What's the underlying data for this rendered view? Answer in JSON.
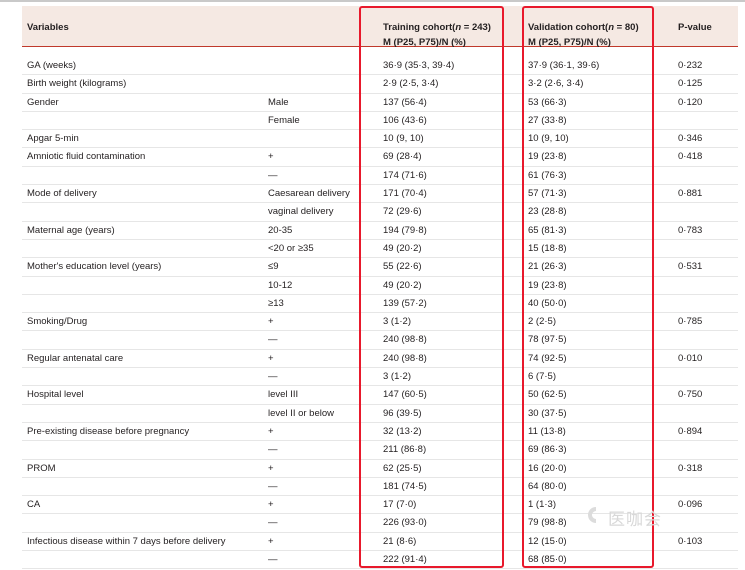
{
  "header": {
    "variables": "Variables",
    "training_line1_prefix": "Training cohort(",
    "training_line1_n": "n",
    "training_line1_suffix": " = 243)",
    "training_line2": "M (P25, P75)/N (%)",
    "validation_line1_prefix": "Validation cohort(",
    "validation_line1_n": "n",
    "validation_line1_suffix": " = 80)",
    "validation_line2": "M (P25, P75)/N (%)",
    "pvalue": "P-value"
  },
  "rows": [
    {
      "variable": "GA (weeks)",
      "category": "",
      "training": "36·9 (35·3, 39·4)",
      "validation": "37·9 (36·1, 39·6)",
      "p": "0·232"
    },
    {
      "variable": "Birth weight (kilograms)",
      "category": "",
      "training": "2·9 (2·5, 3·4)",
      "validation": "3·2 (2·6, 3·4)",
      "p": "0·125"
    },
    {
      "variable": "Gender",
      "category": "Male",
      "training": "137 (56·4)",
      "validation": "53 (66·3)",
      "p": "0·120"
    },
    {
      "variable": "",
      "category": "Female",
      "training": "106 (43·6)",
      "validation": "27 (33·8)",
      "p": ""
    },
    {
      "variable": "Apgar 5-min",
      "category": "",
      "training": "10 (9, 10)",
      "validation": "10 (9, 10)",
      "p": "0·346"
    },
    {
      "variable": "Amniotic fluid contamination",
      "category": "+",
      "training": "69 (28·4)",
      "validation": "19 (23·8)",
      "p": "0·418"
    },
    {
      "variable": "",
      "category": "—",
      "training": "174 (71·6)",
      "validation": "61 (76·3)",
      "p": ""
    },
    {
      "variable": "Mode of delivery",
      "category": "Caesarean delivery",
      "training": "171 (70·4)",
      "validation": "57 (71·3)",
      "p": "0·881"
    },
    {
      "variable": "",
      "category": "vaginal delivery",
      "training": "72 (29·6)",
      "validation": "23 (28·8)",
      "p": ""
    },
    {
      "variable": "Maternal age (years)",
      "category": "20-35",
      "training": "194 (79·8)",
      "validation": "65 (81·3)",
      "p": "0·783"
    },
    {
      "variable": "",
      "category": "<20 or ≥35",
      "training": "49 (20·2)",
      "validation": "15 (18·8)",
      "p": ""
    },
    {
      "variable": "Mother's education level (years)",
      "category": "≤9",
      "training": "55 (22·6)",
      "validation": "21 (26·3)",
      "p": "0·531"
    },
    {
      "variable": "",
      "category": "10-12",
      "training": "49 (20·2)",
      "validation": "19 (23·8)",
      "p": ""
    },
    {
      "variable": "",
      "category": "≥13",
      "training": "139 (57·2)",
      "validation": "40 (50·0)",
      "p": ""
    },
    {
      "variable": "Smoking/Drug",
      "category": "+",
      "training": "3 (1·2)",
      "validation": "2 (2·5)",
      "p": "0·785"
    },
    {
      "variable": "",
      "category": "—",
      "training": "240 (98·8)",
      "validation": "78 (97·5)",
      "p": ""
    },
    {
      "variable": "Regular antenatal care",
      "category": "+",
      "training": "240 (98·8)",
      "validation": "74 (92·5)",
      "p": "0·010"
    },
    {
      "variable": "",
      "category": "—",
      "training": "3 (1·2)",
      "validation": "6 (7·5)",
      "p": ""
    },
    {
      "variable": "Hospital level",
      "category": "level III",
      "training": "147 (60·5)",
      "validation": "50 (62·5)",
      "p": "0·750"
    },
    {
      "variable": "",
      "category": "level II or below",
      "training": "96 (39·5)",
      "validation": "30 (37·5)",
      "p": ""
    },
    {
      "variable": "Pre-existing disease before pregnancy",
      "category": "+",
      "training": "32 (13·2)",
      "validation": "11 (13·8)",
      "p": "0·894"
    },
    {
      "variable": "",
      "category": "—",
      "training": "211 (86·8)",
      "validation": "69 (86·3)",
      "p": ""
    },
    {
      "variable": "PROM",
      "category": "+",
      "training": "62 (25·5)",
      "validation": "16 (20·0)",
      "p": "0·318"
    },
    {
      "variable": "",
      "category": "—",
      "training": "181 (74·5)",
      "validation": "64 (80·0)",
      "p": ""
    },
    {
      "variable": "CA",
      "category": "+",
      "training": "17 (7·0)",
      "validation": "1 (1·3)",
      "p": "0·096"
    },
    {
      "variable": "",
      "category": "—",
      "training": "226 (93·0)",
      "validation": "79 (98·8)",
      "p": ""
    },
    {
      "variable": "Infectious disease within 7 days before delivery",
      "category": "+",
      "training": "21 (8·6)",
      "validation": "12 (15·0)",
      "p": "0·103"
    },
    {
      "variable": "",
      "category": "—",
      "training": "222 (91·4)",
      "validation": "68 (85·0)",
      "p": ""
    }
  ],
  "highlight_color": "#e8192c",
  "watermark": "医咖会"
}
